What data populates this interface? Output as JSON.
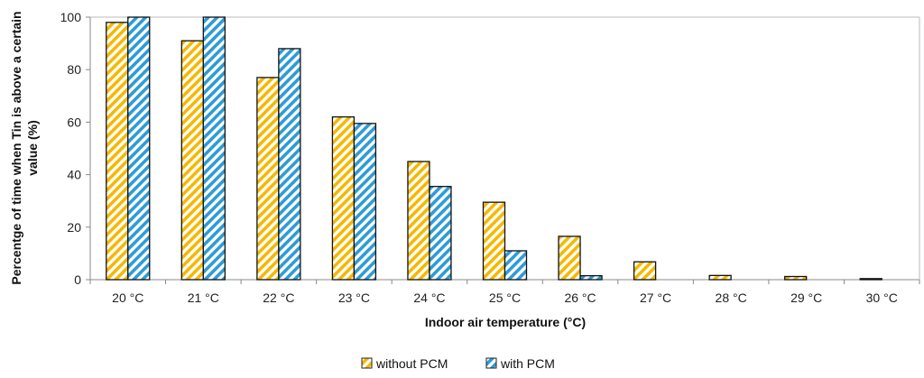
{
  "chart_data": {
    "type": "bar",
    "title": "",
    "xlabel": "Indoor air temperature  (°C)",
    "ylabel_line1": "Percentge of time when Tin is above a certain",
    "ylabel_line2": "value (%)",
    "ylim": [
      0,
      100
    ],
    "yticks": [
      "0",
      "20",
      "40",
      "60",
      "80",
      "100"
    ],
    "grid": false,
    "legend_position": "bottom-center",
    "categories": [
      "20 °C",
      "21 °C",
      "22 °C",
      "23 °C",
      "24 °C",
      "25 °C",
      "26 °C",
      "27 °C",
      "28 °C",
      "29 °C",
      "30 °C"
    ],
    "series": [
      {
        "name": "without PCM",
        "pattern": "yellow-diagonal-stripes",
        "color": "#F5B800",
        "values": [
          98,
          91,
          77,
          62,
          45,
          29.5,
          16.5,
          6.8,
          1.6,
          1.2,
          0.4
        ]
      },
      {
        "name": "with PCM",
        "pattern": "blue-diagonal-stripes",
        "color": "#2E9BD6",
        "values": [
          100,
          100,
          88,
          59.5,
          35.5,
          11,
          1.5,
          0,
          0,
          0,
          0
        ]
      }
    ]
  }
}
